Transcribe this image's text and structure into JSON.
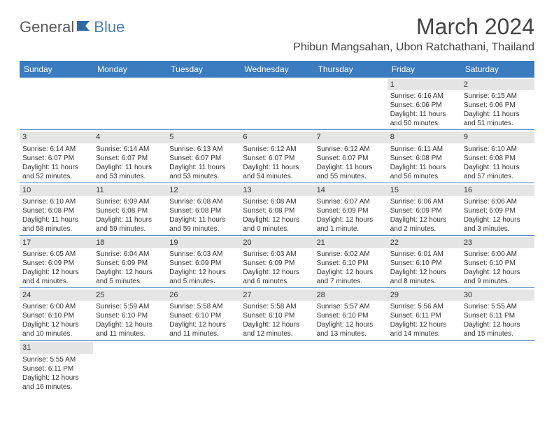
{
  "logo": {
    "part1": "General",
    "part2": "Blue"
  },
  "title": "March 2024",
  "location": "Phibun Mangsahan, Ubon Ratchathani, Thailand",
  "colors": {
    "header_bg": "#3b7bbf",
    "header_text": "#ffffff",
    "daynum_bg": "#e5e5e5",
    "row_border": "#3b7bbf",
    "text": "#333333",
    "logo_gray": "#5a5a5a",
    "logo_blue": "#4a7fb5",
    "background": "#ffffff"
  },
  "typography": {
    "title_size": 32,
    "location_size": 16,
    "header_size": 12,
    "cell_size": 10
  },
  "day_headers": [
    "Sunday",
    "Monday",
    "Tuesday",
    "Wednesday",
    "Thursday",
    "Friday",
    "Saturday"
  ],
  "weeks": [
    [
      null,
      null,
      null,
      null,
      null,
      {
        "n": "1",
        "sr": "Sunrise: 6:16 AM",
        "ss": "Sunset: 6:06 PM",
        "dl": "Daylight: 11 hours and 50 minutes."
      },
      {
        "n": "2",
        "sr": "Sunrise: 6:15 AM",
        "ss": "Sunset: 6:06 PM",
        "dl": "Daylight: 11 hours and 51 minutes."
      }
    ],
    [
      {
        "n": "3",
        "sr": "Sunrise: 6:14 AM",
        "ss": "Sunset: 6:07 PM",
        "dl": "Daylight: 11 hours and 52 minutes."
      },
      {
        "n": "4",
        "sr": "Sunrise: 6:14 AM",
        "ss": "Sunset: 6:07 PM",
        "dl": "Daylight: 11 hours and 53 minutes."
      },
      {
        "n": "5",
        "sr": "Sunrise: 6:13 AM",
        "ss": "Sunset: 6:07 PM",
        "dl": "Daylight: 11 hours and 53 minutes."
      },
      {
        "n": "6",
        "sr": "Sunrise: 6:12 AM",
        "ss": "Sunset: 6:07 PM",
        "dl": "Daylight: 11 hours and 54 minutes."
      },
      {
        "n": "7",
        "sr": "Sunrise: 6:12 AM",
        "ss": "Sunset: 6:07 PM",
        "dl": "Daylight: 11 hours and 55 minutes."
      },
      {
        "n": "8",
        "sr": "Sunrise: 6:11 AM",
        "ss": "Sunset: 6:08 PM",
        "dl": "Daylight: 11 hours and 56 minutes."
      },
      {
        "n": "9",
        "sr": "Sunrise: 6:10 AM",
        "ss": "Sunset: 6:08 PM",
        "dl": "Daylight: 11 hours and 57 minutes."
      }
    ],
    [
      {
        "n": "10",
        "sr": "Sunrise: 6:10 AM",
        "ss": "Sunset: 6:08 PM",
        "dl": "Daylight: 11 hours and 58 minutes."
      },
      {
        "n": "11",
        "sr": "Sunrise: 6:09 AM",
        "ss": "Sunset: 6:08 PM",
        "dl": "Daylight: 11 hours and 59 minutes."
      },
      {
        "n": "12",
        "sr": "Sunrise: 6:08 AM",
        "ss": "Sunset: 6:08 PM",
        "dl": "Daylight: 11 hours and 59 minutes."
      },
      {
        "n": "13",
        "sr": "Sunrise: 6:08 AM",
        "ss": "Sunset: 6:08 PM",
        "dl": "Daylight: 12 hours and 0 minutes."
      },
      {
        "n": "14",
        "sr": "Sunrise: 6:07 AM",
        "ss": "Sunset: 6:09 PM",
        "dl": "Daylight: 12 hours and 1 minute."
      },
      {
        "n": "15",
        "sr": "Sunrise: 6:06 AM",
        "ss": "Sunset: 6:09 PM",
        "dl": "Daylight: 12 hours and 2 minutes."
      },
      {
        "n": "16",
        "sr": "Sunrise: 6:06 AM",
        "ss": "Sunset: 6:09 PM",
        "dl": "Daylight: 12 hours and 3 minutes."
      }
    ],
    [
      {
        "n": "17",
        "sr": "Sunrise: 6:05 AM",
        "ss": "Sunset: 6:09 PM",
        "dl": "Daylight: 12 hours and 4 minutes."
      },
      {
        "n": "18",
        "sr": "Sunrise: 6:04 AM",
        "ss": "Sunset: 6:09 PM",
        "dl": "Daylight: 12 hours and 5 minutes."
      },
      {
        "n": "19",
        "sr": "Sunrise: 6:03 AM",
        "ss": "Sunset: 6:09 PM",
        "dl": "Daylight: 12 hours and 5 minutes."
      },
      {
        "n": "20",
        "sr": "Sunrise: 6:03 AM",
        "ss": "Sunset: 6:09 PM",
        "dl": "Daylight: 12 hours and 6 minutes."
      },
      {
        "n": "21",
        "sr": "Sunrise: 6:02 AM",
        "ss": "Sunset: 6:10 PM",
        "dl": "Daylight: 12 hours and 7 minutes."
      },
      {
        "n": "22",
        "sr": "Sunrise: 6:01 AM",
        "ss": "Sunset: 6:10 PM",
        "dl": "Daylight: 12 hours and 8 minutes."
      },
      {
        "n": "23",
        "sr": "Sunrise: 6:00 AM",
        "ss": "Sunset: 6:10 PM",
        "dl": "Daylight: 12 hours and 9 minutes."
      }
    ],
    [
      {
        "n": "24",
        "sr": "Sunrise: 6:00 AM",
        "ss": "Sunset: 6:10 PM",
        "dl": "Daylight: 12 hours and 10 minutes."
      },
      {
        "n": "25",
        "sr": "Sunrise: 5:59 AM",
        "ss": "Sunset: 6:10 PM",
        "dl": "Daylight: 12 hours and 11 minutes."
      },
      {
        "n": "26",
        "sr": "Sunrise: 5:58 AM",
        "ss": "Sunset: 6:10 PM",
        "dl": "Daylight: 12 hours and 11 minutes."
      },
      {
        "n": "27",
        "sr": "Sunrise: 5:58 AM",
        "ss": "Sunset: 6:10 PM",
        "dl": "Daylight: 12 hours and 12 minutes."
      },
      {
        "n": "28",
        "sr": "Sunrise: 5:57 AM",
        "ss": "Sunset: 6:10 PM",
        "dl": "Daylight: 12 hours and 13 minutes."
      },
      {
        "n": "29",
        "sr": "Sunrise: 5:56 AM",
        "ss": "Sunset: 6:11 PM",
        "dl": "Daylight: 12 hours and 14 minutes."
      },
      {
        "n": "30",
        "sr": "Sunrise: 5:55 AM",
        "ss": "Sunset: 6:11 PM",
        "dl": "Daylight: 12 hours and 15 minutes."
      }
    ],
    [
      {
        "n": "31",
        "sr": "Sunrise: 5:55 AM",
        "ss": "Sunset: 6:11 PM",
        "dl": "Daylight: 12 hours and 16 minutes."
      },
      null,
      null,
      null,
      null,
      null,
      null
    ]
  ]
}
